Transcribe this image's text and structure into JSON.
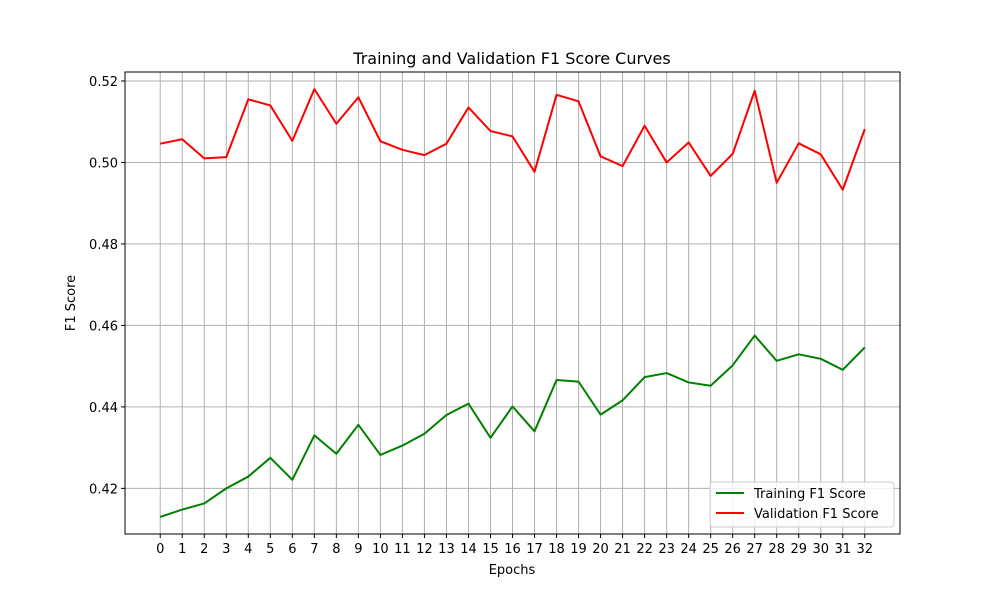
{
  "chart_data": {
    "type": "line",
    "title": "Training and Validation F1 Score Curves",
    "xlabel": "Epochs",
    "ylabel": "F1 Score",
    "x": [
      0,
      1,
      2,
      3,
      4,
      5,
      6,
      7,
      8,
      9,
      10,
      11,
      12,
      13,
      14,
      15,
      16,
      17,
      18,
      19,
      20,
      21,
      22,
      23,
      24,
      25,
      26,
      27,
      28,
      29,
      30,
      31,
      32
    ],
    "xlim": [
      -1.6,
      33.6
    ],
    "ylim": [
      0.4088,
      0.5222
    ],
    "yticks": [
      0.42,
      0.44,
      0.46,
      0.48,
      0.5,
      0.52
    ],
    "ytick_labels": [
      "0.42",
      "0.44",
      "0.46",
      "0.48",
      "0.50",
      "0.52"
    ],
    "grid": true,
    "legend_position": "lower-right",
    "series": [
      {
        "name": "Training F1 Score",
        "color": "#008000",
        "values": [
          0.413,
          0.4148,
          0.4163,
          0.42,
          0.4229,
          0.4275,
          0.4221,
          0.433,
          0.4285,
          0.4356,
          0.4282,
          0.4305,
          0.4334,
          0.438,
          0.4408,
          0.4324,
          0.4401,
          0.434,
          0.4466,
          0.4462,
          0.4381,
          0.4416,
          0.4473,
          0.4483,
          0.446,
          0.4452,
          0.4502,
          0.4575,
          0.4513,
          0.4529,
          0.4518,
          0.4491,
          0.4546
        ]
      },
      {
        "name": "Validation F1 Score",
        "color": "#ff0000",
        "values": [
          0.5046,
          0.5057,
          0.501,
          0.5013,
          0.5155,
          0.514,
          0.5053,
          0.518,
          0.5095,
          0.516,
          0.5052,
          0.5031,
          0.5018,
          0.5046,
          0.5135,
          0.5077,
          0.5064,
          0.4977,
          0.5166,
          0.515,
          0.5015,
          0.4991,
          0.509,
          0.5,
          0.5049,
          0.4967,
          0.5021,
          0.5176,
          0.495,
          0.5047,
          0.502,
          0.4933,
          0.5082
        ]
      }
    ]
  }
}
